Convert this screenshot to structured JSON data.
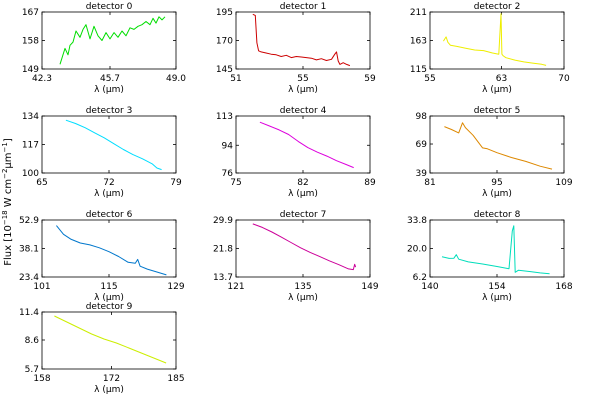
{
  "figure": {
    "ylabel_main": "Flux [10",
    "ylabel_exp1": "−18",
    "ylabel_mid": " W cm",
    "ylabel_exp2": "−2",
    "ylabel_unit": "μm",
    "ylabel_exp3": "−1",
    "ylabel_end": "]"
  },
  "chart_data": [
    {
      "type": "line",
      "title": "detector 0",
      "color": "#00dd00",
      "xlabel": "λ (μm)",
      "xlim": [
        42.3,
        49.0
      ],
      "ylim": [
        149,
        167
      ],
      "xticks": [
        "42.3",
        "45.7",
        "49.0"
      ],
      "yticks": [
        "149",
        "158",
        "167"
      ],
      "x": [
        43.2,
        43.45,
        43.6,
        43.7,
        43.85,
        44.0,
        44.2,
        44.35,
        44.5,
        44.7,
        44.9,
        45.1,
        45.3,
        45.5,
        45.7,
        45.9,
        46.1,
        46.3,
        46.5,
        46.7,
        46.9,
        47.1,
        47.3,
        47.5,
        47.7,
        47.85,
        48.0,
        48.15,
        48.3,
        48.45
      ],
      "y": [
        150.5,
        155.5,
        153.5,
        156.5,
        157.5,
        161,
        159,
        161.5,
        163,
        158.5,
        162.5,
        159.5,
        158,
        160.5,
        158.5,
        160.5,
        159,
        161,
        159.5,
        162,
        161.5,
        162.5,
        163,
        164,
        163,
        165,
        163.5,
        165.5,
        164.5,
        165.5
      ]
    },
    {
      "type": "line",
      "title": "detector 1",
      "color": "#cc0000",
      "xlabel": "λ (μm)",
      "xlim": [
        51,
        59
      ],
      "ylim": [
        145,
        195
      ],
      "xticks": [
        "51",
        "55",
        "59"
      ],
      "yticks": [
        "145",
        "170",
        "195"
      ],
      "x": [
        52.0,
        52.15,
        52.25,
        52.35,
        52.5,
        52.8,
        53.1,
        53.4,
        53.7,
        54.0,
        54.3,
        54.6,
        54.9,
        55.2,
        55.5,
        55.8,
        56.1,
        56.4,
        56.7,
        56.9,
        57.0,
        57.1,
        57.2,
        57.4,
        57.6,
        57.8
      ],
      "y": [
        193,
        192,
        168,
        161,
        160,
        159,
        158,
        157.5,
        156,
        157,
        155,
        156,
        155.5,
        155,
        154.5,
        153,
        154,
        152.5,
        153.5,
        158,
        160,
        152,
        149,
        150.5,
        149,
        148
      ]
    },
    {
      "type": "line",
      "title": "detector 2",
      "color": "#eeee00",
      "xlabel": "λ (μm)",
      "xlim": [
        55,
        70
      ],
      "ylim": [
        115,
        211
      ],
      "xticks": [
        "55",
        "63",
        "70"
      ],
      "yticks": [
        "115",
        "163",
        "211"
      ],
      "x": [
        56.5,
        56.8,
        57.0,
        57.3,
        58.0,
        59.0,
        60.0,
        61.0,
        62.0,
        62.7,
        62.95,
        63.05,
        63.2,
        63.5,
        64.5,
        65.5,
        66.5,
        67.5,
        68.0
      ],
      "y": [
        162,
        169,
        160,
        155,
        153,
        150,
        147,
        146,
        142,
        140,
        208,
        140,
        137,
        134,
        130,
        127,
        125,
        123,
        121
      ]
    },
    {
      "type": "line",
      "title": "detector 3",
      "color": "#00ddff",
      "xlabel": "λ (μm)",
      "xlim": [
        65,
        79
      ],
      "ylim": [
        100,
        134
      ],
      "xticks": [
        "65",
        "72",
        "79"
      ],
      "yticks": [
        "100",
        "117",
        "134"
      ],
      "x": [
        67.5,
        68.5,
        69.5,
        70.5,
        71.5,
        72.5,
        73.5,
        74.5,
        75.5,
        76.5,
        77.0,
        77.5
      ],
      "y": [
        131.5,
        129.5,
        127,
        124,
        121,
        117.5,
        114,
        111,
        108.5,
        105.5,
        103,
        102
      ]
    },
    {
      "type": "line",
      "title": "detector 4",
      "color": "#dd00dd",
      "xlabel": "λ (μm)",
      "xlim": [
        75,
        89
      ],
      "ylim": [
        76,
        113
      ],
      "xticks": [
        "75",
        "82",
        "89"
      ],
      "yticks": [
        "76",
        "94",
        "113"
      ],
      "x": [
        77.5,
        78.5,
        79.5,
        80.5,
        81.5,
        82.5,
        83.5,
        84.5,
        85.5,
        86.5,
        87.3
      ],
      "y": [
        109,
        106.5,
        104,
        101,
        96.5,
        92.5,
        89.5,
        87,
        84,
        81.5,
        79.5
      ]
    },
    {
      "type": "line",
      "title": "detector 5",
      "color": "#dd8800",
      "xlabel": "λ (μm)",
      "xlim": [
        81,
        109
      ],
      "ylim": [
        39,
        98
      ],
      "xticks": [
        "81",
        "95",
        "109"
      ],
      "yticks": [
        "39",
        "69",
        "98"
      ],
      "x": [
        84.0,
        85.5,
        87.0,
        87.8,
        88.4,
        90.0,
        92.0,
        93.0,
        95.0,
        98.0,
        101.0,
        104.0,
        106.5
      ],
      "y": [
        87,
        84,
        80.5,
        91,
        86,
        78,
        65,
        64,
        60,
        55,
        51,
        46,
        43
      ]
    },
    {
      "type": "line",
      "title": "detector 6",
      "color": "#0077cc",
      "xlabel": "λ (μm)",
      "xlim": [
        101,
        129
      ],
      "ylim": [
        23.4,
        52.9
      ],
      "xticks": [
        "101",
        "115",
        "129"
      ],
      "yticks": [
        "23.4",
        "38.1",
        "52.9"
      ],
      "x": [
        104.0,
        105.5,
        107.0,
        109.0,
        111.0,
        113.0,
        115.0,
        117.0,
        119.0,
        120.5,
        121.0,
        121.5,
        123.0,
        125.0,
        127.0
      ],
      "y": [
        50,
        45.5,
        43,
        41,
        40,
        38.5,
        36.5,
        34,
        31,
        30.5,
        32.5,
        29,
        27.5,
        26,
        24.5
      ]
    },
    {
      "type": "line",
      "title": "detector 7",
      "color": "#cc0099",
      "xlabel": "λ (μm)",
      "xlim": [
        121,
        149
      ],
      "ylim": [
        13.7,
        29.9
      ],
      "xticks": [
        "121",
        "135",
        "149"
      ],
      "yticks": [
        "13.7",
        "21.8",
        "29.9"
      ],
      "x": [
        124.5,
        126.5,
        128.5,
        130.5,
        132.5,
        134.5,
        136.5,
        138.5,
        140.5,
        142.5,
        144.5,
        145.5,
        145.8,
        146.0
      ],
      "y": [
        28.8,
        27.8,
        26.5,
        25,
        23.5,
        22,
        20.7,
        19.5,
        18.3,
        17.2,
        16,
        15.8,
        17.3,
        16.5
      ]
    },
    {
      "type": "line",
      "title": "detector 8",
      "color": "#00ddbb",
      "xlabel": "λ (μm)",
      "xlim": [
        140,
        168
      ],
      "ylim": [
        6.2,
        33.8
      ],
      "xticks": [
        "140",
        "154",
        "168"
      ],
      "yticks": [
        "6.2",
        "20.0",
        "33.8"
      ],
      "x": [
        142.5,
        144.0,
        145.0,
        145.5,
        146.0,
        148.0,
        151.0,
        154.0,
        156.5,
        157.2,
        157.5,
        157.8,
        158.5,
        161.0,
        163.0,
        165.0
      ],
      "y": [
        16,
        15.2,
        15.3,
        17,
        14.8,
        13.5,
        12.5,
        11.3,
        10.2,
        28.5,
        31,
        8.5,
        9.5,
        8.8,
        8.2,
        7.8
      ]
    },
    {
      "type": "line",
      "title": "detector 9",
      "color": "#ccee00",
      "xlabel": "λ (μm)",
      "xlim": [
        158,
        185
      ],
      "ylim": [
        5.7,
        11.4
      ],
      "xticks": [
        "158",
        "172",
        "185"
      ],
      "yticks": [
        "5.7",
        "8.6",
        "11.4"
      ],
      "x": [
        160.5,
        163.0,
        165.5,
        168.0,
        170.5,
        173.0,
        175.5,
        178.0,
        180.5,
        183.0
      ],
      "y": [
        11.0,
        10.4,
        9.8,
        9.2,
        8.7,
        8.3,
        7.8,
        7.3,
        6.8,
        6.3
      ]
    }
  ]
}
